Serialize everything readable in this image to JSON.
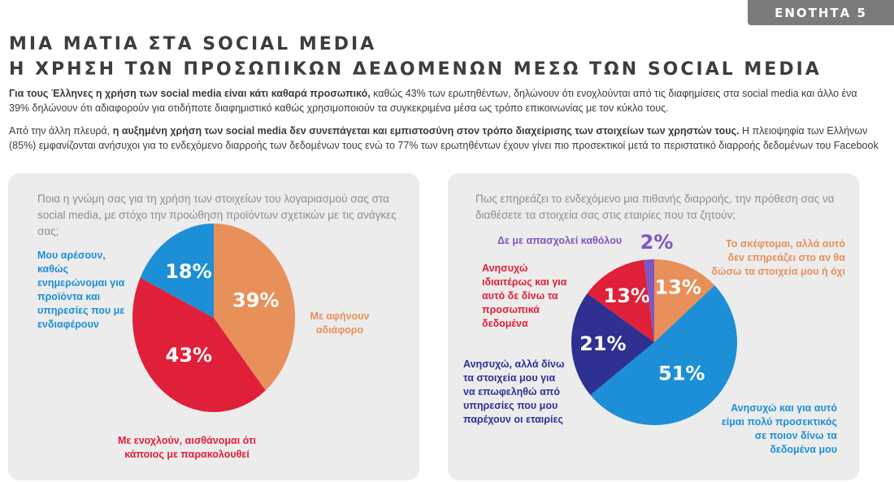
{
  "section_tab": "ΕΝΟΤΗΤΑ 5",
  "title_line1": "ΜΙΑ ΜΑΤΙΑ ΣΤΑ SOCIAL MEDIA",
  "title_line2": "Η ΧΡΗΣΗ ΤΩΝ ΠΡΟΣΩΠΙΚΩΝ ΔΕΔΟΜΕΝΩΝ ΜΕΣΩ ΤΩΝ SOCIAL MEDIA",
  "paragraph1": {
    "bold": "Για τους Έλληνες η χρήση των social media είναι κάτι καθαρά προσωπικό,",
    "text": " καθώς 43% των ερωτηθέντων, δηλώνουν ότι ενοχλούνται από τις διαφημίσεις στα social media και άλλο ένα 39% δηλώνουν ότι αδιαφορούν για οτιδήποτε διαφημιστικό καθώς χρησιμοποιούν τα συγκεκριμένα μέσα ως τρόπο επικοινωνίας με τον κύκλο τους."
  },
  "paragraph2": {
    "text_a": "Από την άλλη πλευρά, ",
    "bold": "η αυξημένη χρήση των social media δεν συνεπάγεται και εμπιστοσύνη στον τρόπο διαχείρισης των στοιχείων των χρηστών τους.",
    "text_b": " Η πλειοψηφία των Ελλήνων (85%) εμφανίζονται ανήσυχοι για το ενδεχόμενο διαρροής των δεδομένων τους ενώ το 77% των ερωτηθέντων έχουν γίνει πιο προσεκτικοί μετά το περιστατικό διαρροής δεδομένων του Facebook"
  },
  "chart_data": [
    {
      "type": "pie",
      "title": "Ποια η γνώμη σας για τη χρήση των στοιχείων του λογαριασμού σας στα social media, με στόχο την προώθηση προϊόντων σχετικών με τις ανάγκες σας;",
      "slices": [
        {
          "label": "Με αφήνουν αδιάφορο",
          "value": 39,
          "display": "39%",
          "color": "#e8905a"
        },
        {
          "label": "Με ενοχλούν, αισθάνομαι ότι κάποιος με παρακολουθεί",
          "value": 43,
          "display": "43%",
          "color": "#e02038"
        },
        {
          "label": "Μου αρέσουν, καθώς ενημερώνομαι για προϊόντα και υπηρεσίες που με ενδιαφέρουν",
          "value": 18,
          "display": "18%",
          "color": "#1c8fd6"
        }
      ]
    },
    {
      "type": "pie",
      "title": "Πως επηρεάζει το ενδεχόμενο μια πιθανής διαρροής, την πρόθεση σας να διαθέσετε τα στοιχεία σας στις εταιρίες που τα ζητούν;",
      "slices": [
        {
          "label": "Το σκέφτομαι, αλλά αυτό δεν επηρεάζει στο αν θα δώσω τα στοιχεία μου ή όχι",
          "value": 13,
          "display": "13%",
          "color": "#e8905a"
        },
        {
          "label": "Ανησυχώ και για αυτό είμαι πολύ προσεκτικός σε ποιον δίνω τα δεδομένα μου",
          "value": 51,
          "display": "51%",
          "color": "#1c8fd6"
        },
        {
          "label": "Ανησυχώ, αλλά δίνω τα στοιχεία μου για να επωφεληθώ από υπηρεσίες που μου παρέχουν οι εταιρίες",
          "value": 21,
          "display": "21%",
          "color": "#2e3192"
        },
        {
          "label": "Ανησυχώ ιδιαιτέρως και για αυτό δε δίνω τα προσωπικά δεδομένα",
          "value": 13,
          "display": "13%",
          "color": "#e02038"
        },
        {
          "label": "Δε με απασχολεί καθόλου",
          "value": 2,
          "display": "2%",
          "color": "#7e57c2"
        }
      ]
    }
  ]
}
